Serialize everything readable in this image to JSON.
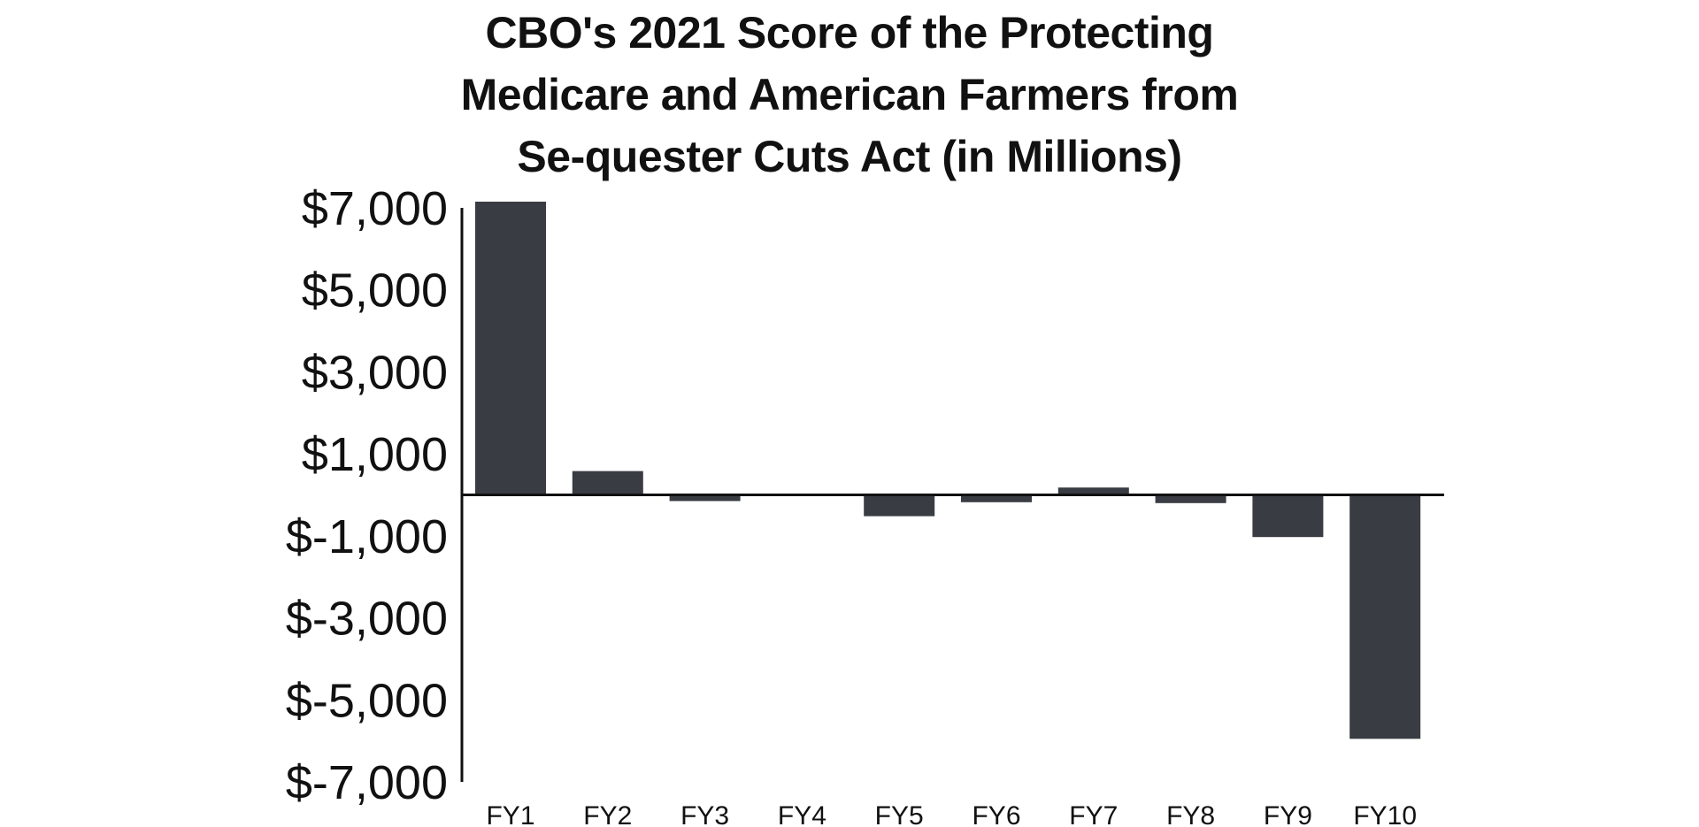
{
  "chart_data": {
    "type": "bar",
    "title": "CBO's 2021 Score of the Protecting Medicare and American Farmers from Se-quester Cuts Act (in Millions)",
    "xlabel": "",
    "ylabel": "",
    "categories": [
      "FY1",
      "FY2",
      "FY3",
      "FY4",
      "FY5",
      "FY6",
      "FY7",
      "FY8",
      "FY9",
      "FY10"
    ],
    "values": [
      7150,
      580,
      -150,
      0,
      -520,
      -180,
      180,
      -200,
      -1030,
      -5950
    ],
    "ylim": [
      -7000,
      7000
    ],
    "yticks": [
      7000,
      5000,
      3000,
      1000,
      -1000,
      -3000,
      -5000,
      -7000
    ],
    "ytick_labels": [
      "$7,000",
      "$5,000",
      "$3,000",
      "$1,000",
      "$-1,000",
      "$-3,000",
      "$-5,000",
      "$-7,000"
    ],
    "grid": false,
    "legend": "none",
    "bar_color": "#393c42"
  }
}
